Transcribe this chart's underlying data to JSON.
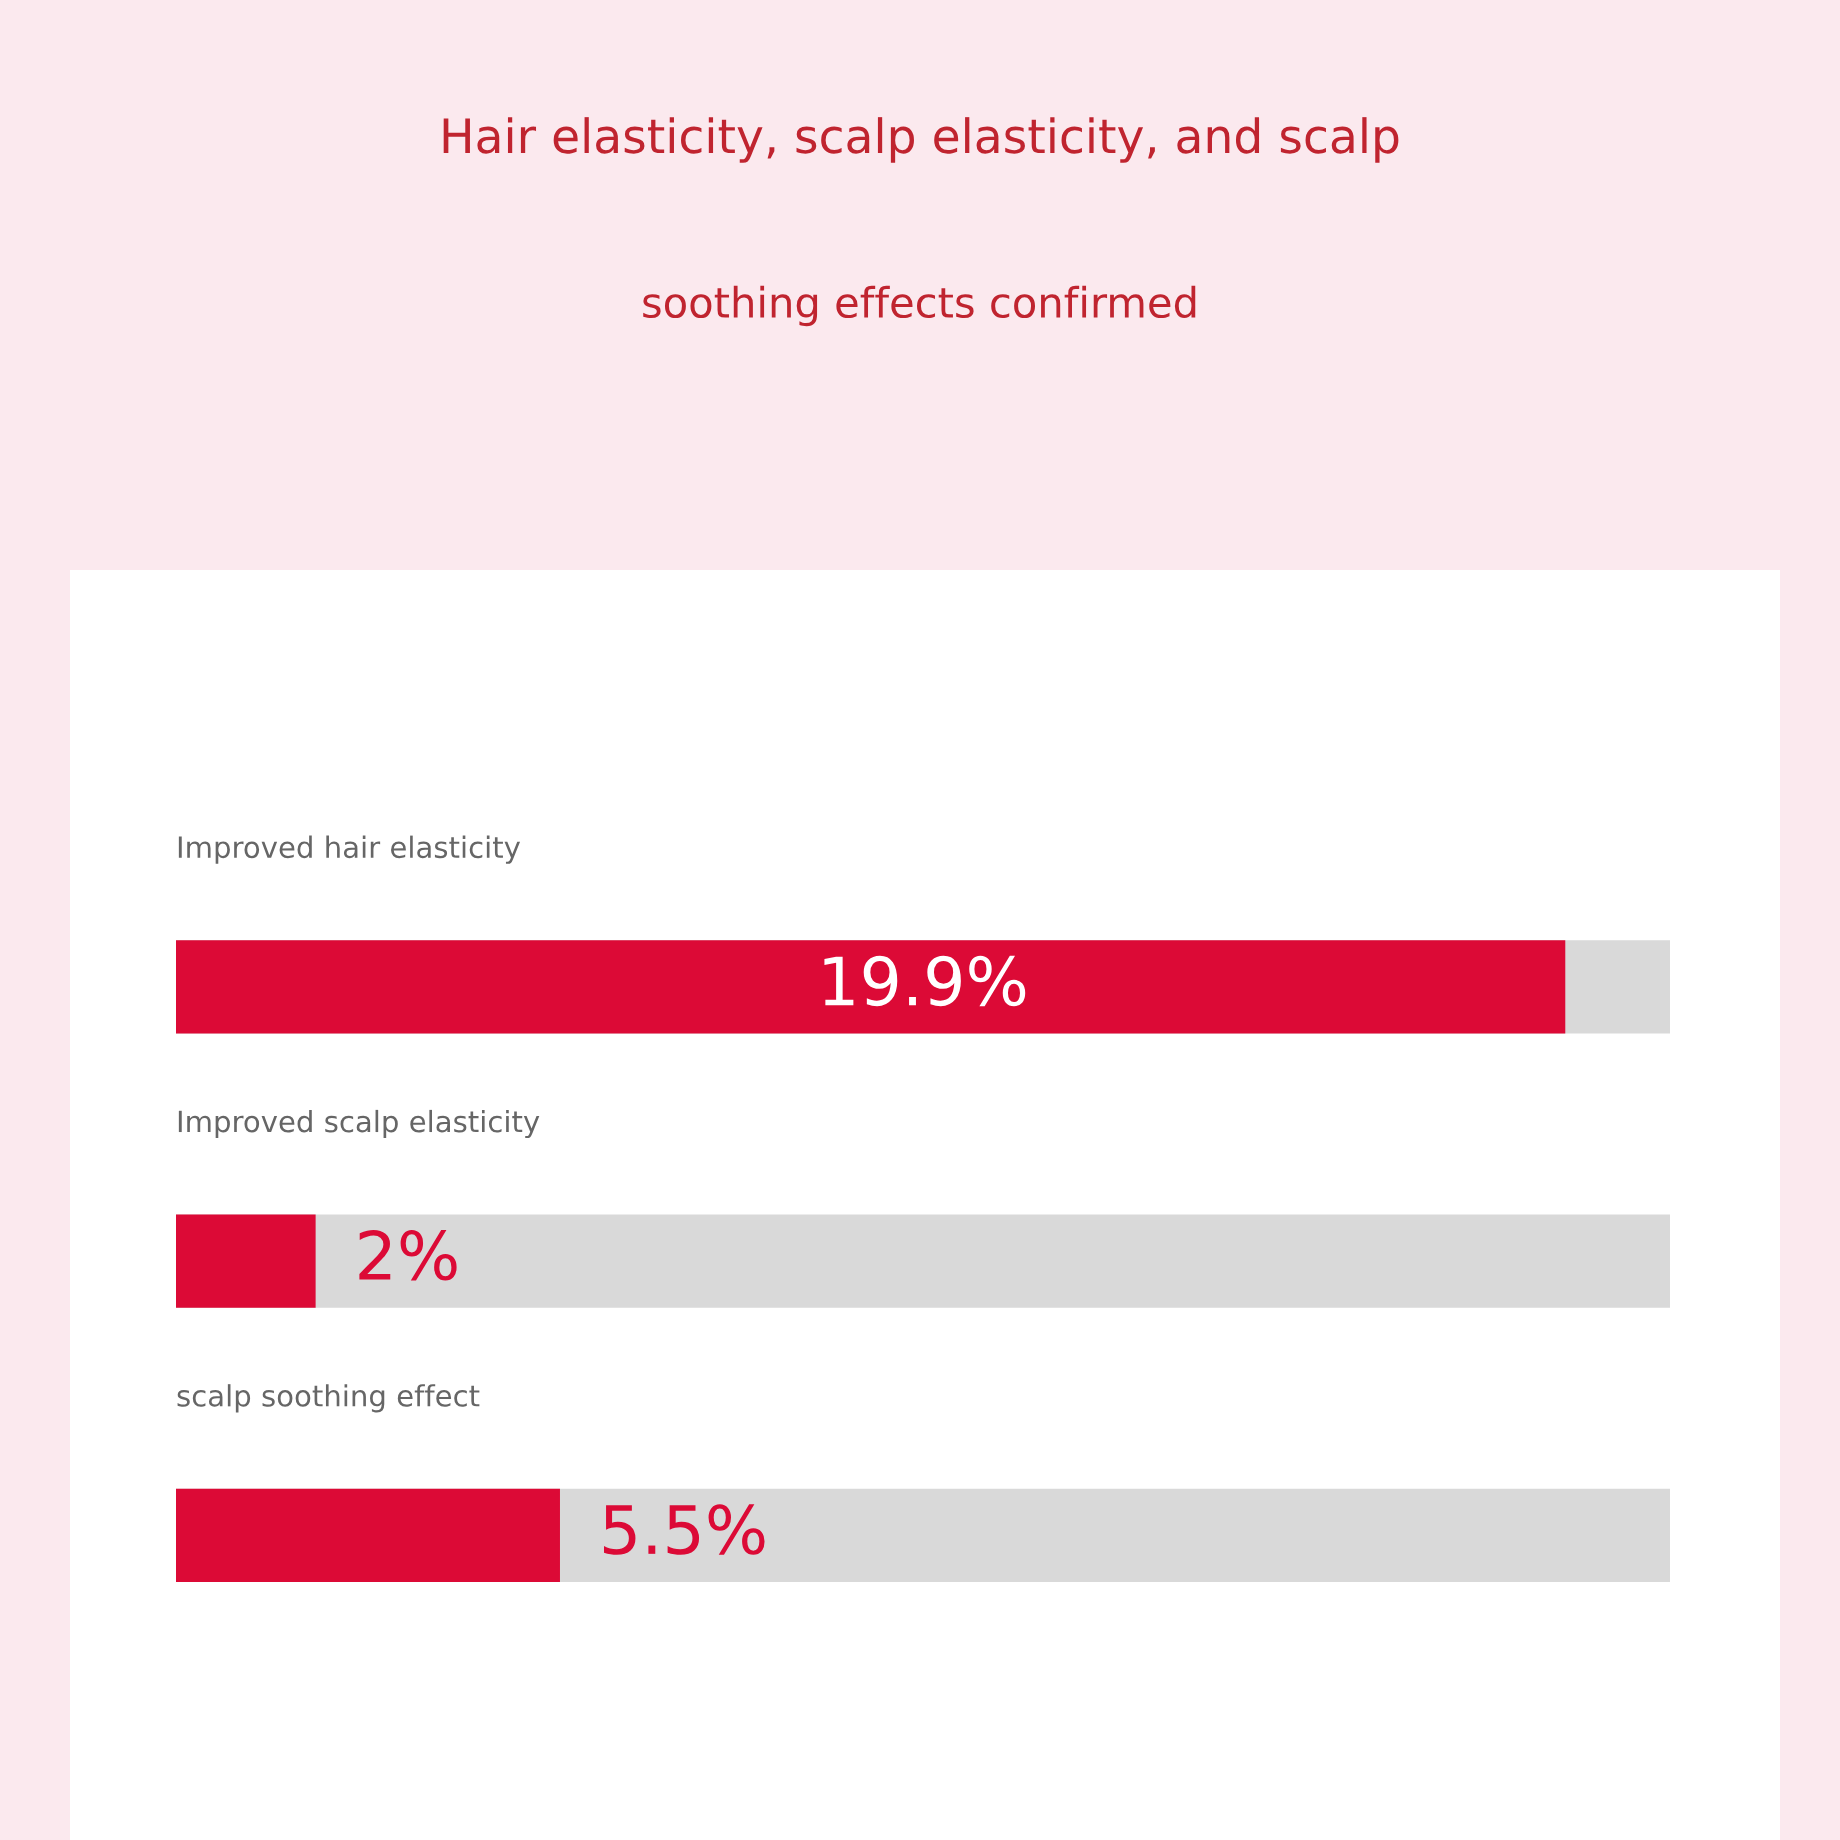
{
  "chart_data": {
    "type": "bar",
    "orientation": "horizontal",
    "title": "Hair elasticity, scalp elasticity, and scalp",
    "subtitle": "soothing effects confirmed",
    "categories": [
      "Improved hair elasticity",
      "Improved scalp elasticity",
      "scalp soothing effect"
    ],
    "values": [
      19.9,
      2,
      5.5
    ],
    "value_labels": [
      "19.9%",
      "2%",
      "5.5%"
    ],
    "color": "#dc0a36",
    "xlim": [
      0,
      21.4
    ]
  }
}
